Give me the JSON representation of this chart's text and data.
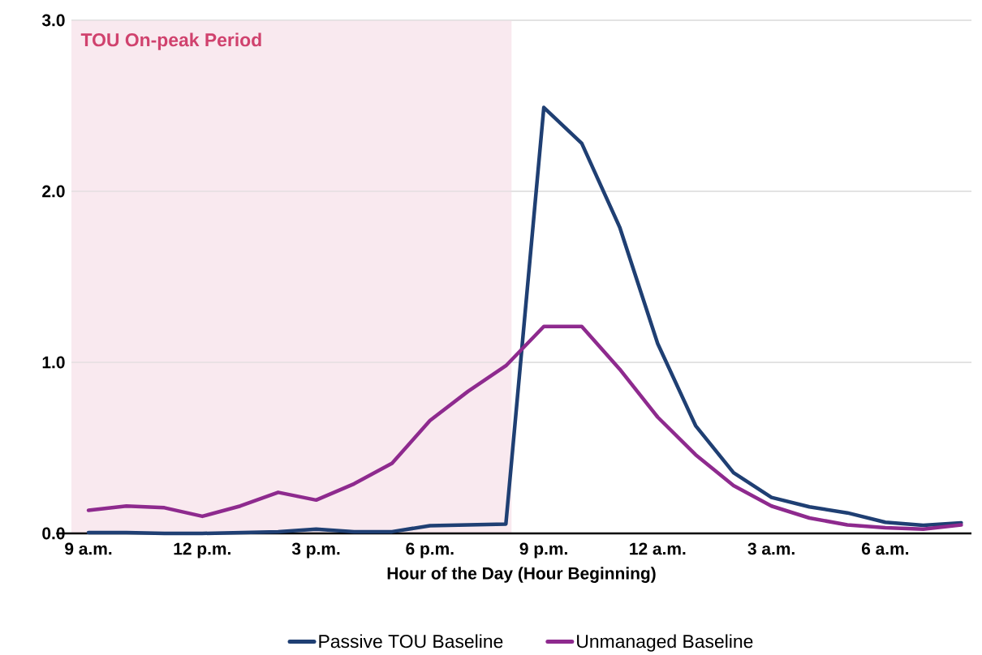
{
  "chart_data": {
    "type": "line",
    "xlabel": "Hour of the Day (Hour Beginning)",
    "categories": [
      "9 a.m.",
      null,
      null,
      "12 p.m.",
      null,
      null,
      "3 p.m.",
      null,
      null,
      "6 p.m.",
      null,
      null,
      "9 p.m.",
      null,
      null,
      "12 a.m.",
      null,
      null,
      "3 a.m.",
      null,
      null,
      "6 a.m.",
      null,
      null
    ],
    "series": [
      {
        "name": "Passive TOU Baseline",
        "color": "#1f3f73",
        "values": [
          0.005,
          0.005,
          0.0,
          0.0,
          0.005,
          0.01,
          0.025,
          0.01,
          0.01,
          0.045,
          0.05,
          0.055,
          2.49,
          2.28,
          1.79,
          1.11,
          0.63,
          0.355,
          0.21,
          0.155,
          0.12,
          0.065,
          0.047,
          0.062
        ]
      },
      {
        "name": "Unmanaged Baseline",
        "color": "#8e2a8e",
        "values": [
          0.135,
          0.16,
          0.15,
          0.1,
          0.16,
          0.24,
          0.195,
          0.29,
          0.41,
          0.66,
          0.83,
          0.98,
          1.21,
          1.21,
          0.96,
          0.68,
          0.46,
          0.28,
          0.16,
          0.09,
          0.05,
          0.033,
          0.025,
          0.05
        ]
      }
    ],
    "ylim": [
      0,
      3
    ],
    "yticks": [
      {
        "value": 0,
        "label": "0.0"
      },
      {
        "value": 1,
        "label": "1.0"
      },
      {
        "value": 2,
        "label": "2.0"
      },
      {
        "value": 3,
        "label": "3.0"
      }
    ],
    "annotations": [
      "TOU On-peak Period"
    ],
    "grid": "y",
    "legend": "bottom",
    "marker": "none",
    "line_style": "solid"
  }
}
